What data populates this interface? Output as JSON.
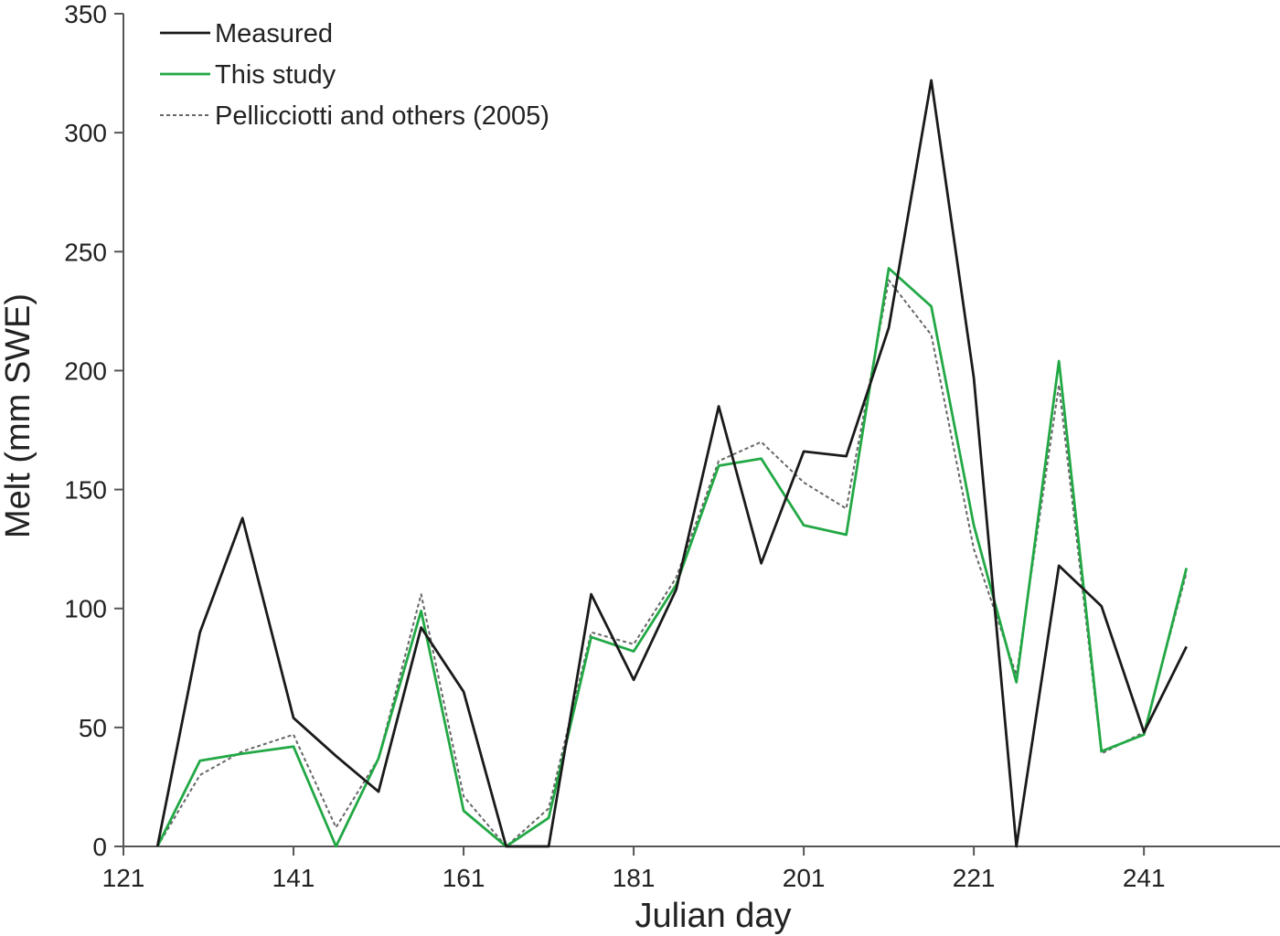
{
  "chart_data": {
    "type": "line",
    "title": "",
    "xlabel": "Julian day",
    "ylabel": "Melt (mm SWE)",
    "xlim": [
      121,
      257
    ],
    "ylim": [
      0,
      350
    ],
    "xticks": [
      "121",
      "141",
      "161",
      "181",
      "201",
      "221",
      "241"
    ],
    "yticks": [
      "0",
      "50",
      "100",
      "150",
      "200",
      "250",
      "300",
      "350"
    ],
    "grid": false,
    "legend_position": "top-left",
    "x": [
      125,
      130,
      135,
      141,
      146,
      151,
      156,
      161,
      166,
      171,
      176,
      181,
      186,
      191,
      196,
      201,
      206,
      211,
      216,
      221,
      226,
      231,
      236,
      241,
      246
    ],
    "series": [
      {
        "name": "Measured",
        "color": "#1a1a1a",
        "style": "solid",
        "values": [
          0,
          90,
          138,
          54,
          38,
          23,
          92,
          65,
          0,
          0,
          106,
          70,
          108,
          185,
          119,
          166,
          164,
          218,
          322,
          197,
          0,
          118,
          101,
          48,
          84
        ]
      },
      {
        "name": "This study",
        "color": "#22a845",
        "style": "solid",
        "values": [
          0,
          36,
          39,
          42,
          0,
          37,
          99,
          15,
          0,
          12,
          88,
          82,
          110,
          160,
          163,
          135,
          131,
          243,
          227,
          135,
          69,
          204,
          40,
          47,
          117
        ]
      },
      {
        "name": "Pellicciotti and others (2005)",
        "color": "#666666",
        "style": "dotted",
        "values": [
          0,
          30,
          40,
          47,
          8,
          37,
          106,
          21,
          0,
          16,
          90,
          85,
          113,
          162,
          170,
          153,
          142,
          238,
          215,
          125,
          72,
          194,
          39,
          48,
          115
        ]
      }
    ]
  }
}
